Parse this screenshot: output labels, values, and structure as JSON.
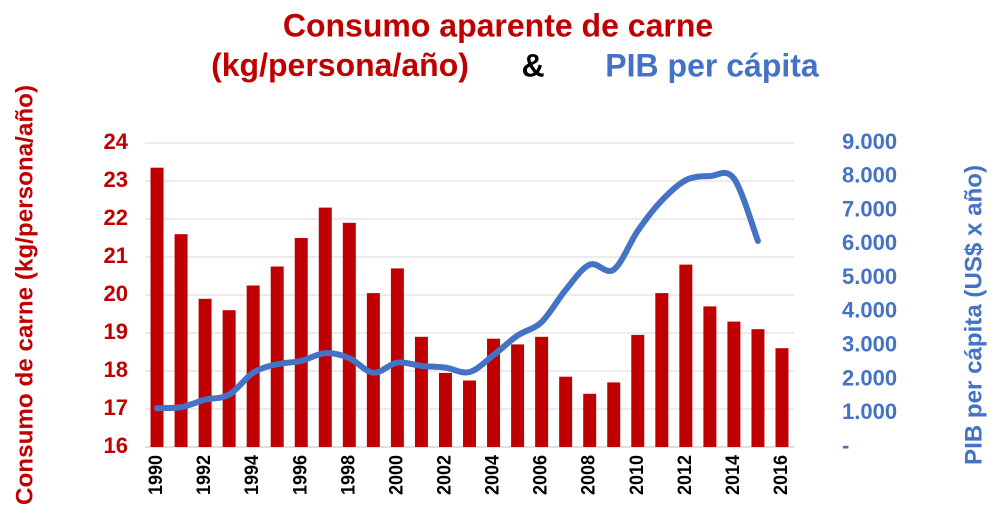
{
  "chart_data": {
    "type": "bar",
    "title": "Consumo aparente de carne",
    "title_units": "(kg/persona/año)",
    "title_connector": "&",
    "title_series": "PIB per cápita",
    "y_label": "Consumo de carne (kg/persona/año)",
    "y2_label": "PIB per cápita (US$ x año)",
    "categories": [
      "1990",
      null,
      "1992",
      null,
      "1994",
      null,
      "1996",
      null,
      "1998",
      null,
      "2000",
      null,
      "2002",
      null,
      "2004",
      null,
      "2006",
      null,
      "2008",
      null,
      "2010",
      null,
      "2012",
      null,
      "2014",
      null,
      "2016"
    ],
    "series": [
      {
        "name": "Consumo aparente de carne",
        "type": "bar",
        "color": "#c00000",
        "values": [
          23.35,
          21.6,
          19.9,
          19.6,
          20.25,
          20.75,
          21.5,
          22.3,
          21.9,
          20.05,
          20.7,
          18.9,
          17.95,
          17.75,
          18.85,
          18.7,
          18.9,
          17.85,
          17.4,
          17.7,
          18.95,
          20.05,
          20.8,
          19.7,
          19.3,
          19.1,
          18.6
        ]
      },
      {
        "name": "PIB per cápita",
        "type": "line",
        "axis": "y2",
        "color": "#4472c4",
        "values": [
          1150,
          1180,
          1400,
          1550,
          2200,
          2450,
          2550,
          2780,
          2630,
          2200,
          2500,
          2400,
          2350,
          2220,
          2720,
          3300,
          3700,
          4650,
          5400,
          5250,
          6400,
          7300,
          7900,
          8020,
          7950,
          6100,
          null
        ]
      }
    ],
    "ylim": [
      16,
      24
    ],
    "yticks": [
      16,
      17,
      18,
      19,
      20,
      21,
      22,
      23,
      24
    ],
    "y2lim": [
      0,
      9000
    ],
    "y2ticks": [
      {
        "value": 0,
        "label": "-"
      },
      {
        "value": 1000,
        "label": "1.000"
      },
      {
        "value": 2000,
        "label": "2.000"
      },
      {
        "value": 3000,
        "label": "3.000"
      },
      {
        "value": 4000,
        "label": "4.000"
      },
      {
        "value": 5000,
        "label": "5.000"
      },
      {
        "value": 6000,
        "label": "6.000"
      },
      {
        "value": 7000,
        "label": "7.000"
      },
      {
        "value": 8000,
        "label": "8.000"
      },
      {
        "value": 9000,
        "label": "9.000"
      }
    ],
    "grid": true
  }
}
